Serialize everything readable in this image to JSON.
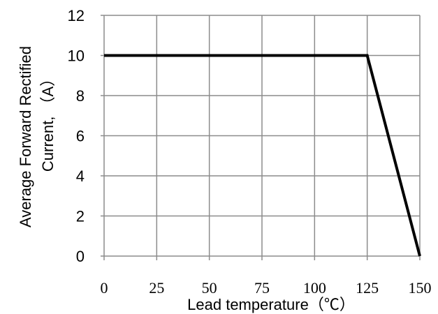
{
  "chart_data": {
    "type": "line",
    "title": "",
    "xlabel": "Lead temperature（℃）",
    "ylabel_lines": [
      "Average  Forward  Rectified",
      "Current,  （A）"
    ],
    "xlim": [
      0,
      150
    ],
    "ylim": [
      0,
      12
    ],
    "x_ticks": [
      0,
      25,
      50,
      75,
      100,
      125,
      150
    ],
    "y_ticks": [
      0,
      2,
      4,
      6,
      8,
      10,
      12
    ],
    "grid": true,
    "series": [
      {
        "x": [
          0,
          125,
          150
        ],
        "y": [
          10,
          10,
          0
        ],
        "color": "#000000"
      }
    ]
  }
}
